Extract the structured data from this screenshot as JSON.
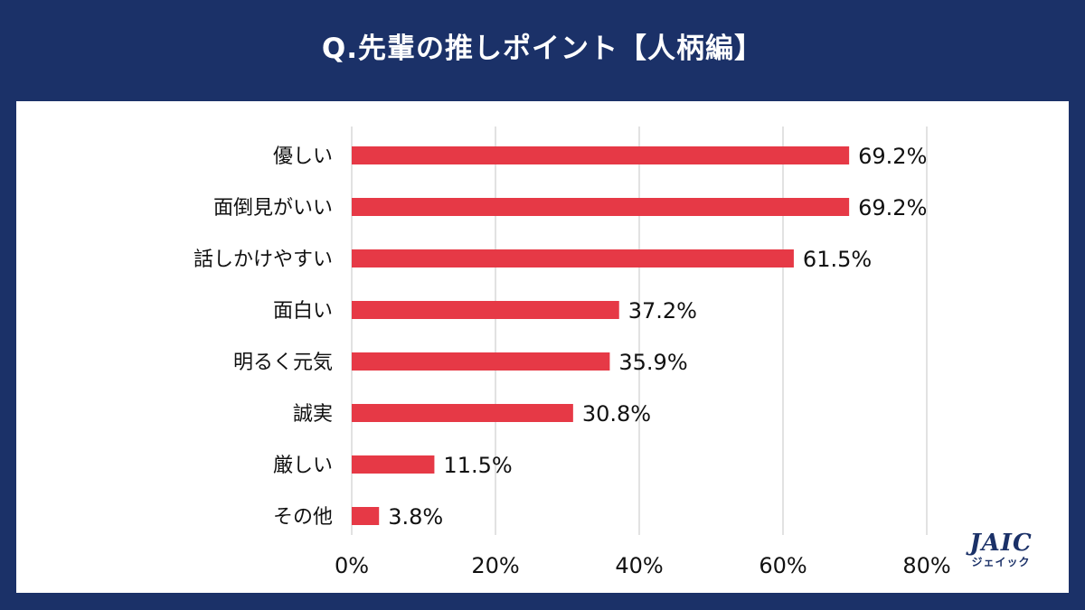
{
  "colors": {
    "background": "#1b3168",
    "panel": "#ffffff",
    "bar": "#e63946",
    "grid": "#cfcfcf",
    "text": "#111111"
  },
  "chart_data": {
    "type": "bar",
    "orientation": "horizontal",
    "title": "Q.先輩の推しポイント【人柄編】",
    "categories": [
      "優しい",
      "面倒見がいい",
      "話しかけやすい",
      "面白い",
      "明るく元気",
      "誠実",
      "厳しい",
      "その他"
    ],
    "values": [
      69.2,
      69.2,
      61.5,
      37.2,
      35.9,
      30.8,
      11.5,
      3.8
    ],
    "value_labels": [
      "69.2%",
      "69.2%",
      "61.5%",
      "37.2%",
      "35.9%",
      "30.8%",
      "11.5%",
      "3.8%"
    ],
    "xlim": [
      0,
      80
    ],
    "xticks": [
      0,
      20,
      40,
      60,
      80
    ],
    "xtick_labels": [
      "0%",
      "20%",
      "40%",
      "60%",
      "80%"
    ],
    "grid": true,
    "legend": "none"
  },
  "logo": {
    "main": "JAIC",
    "sub": "ジェイック"
  }
}
